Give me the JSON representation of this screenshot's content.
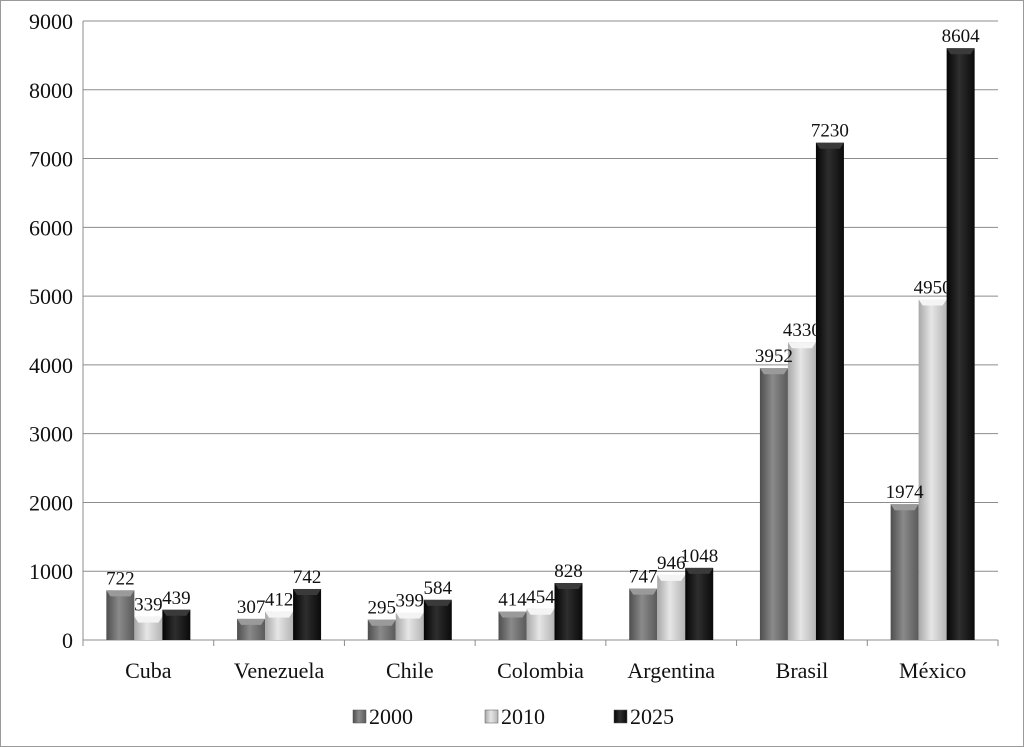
{
  "chart_data": {
    "type": "bar",
    "title": "",
    "xlabel": "",
    "ylabel": "",
    "ylim": [
      0,
      9000
    ],
    "yticks": [
      0,
      1000,
      2000,
      3000,
      4000,
      5000,
      6000,
      7000,
      8000,
      9000
    ],
    "grid": true,
    "legend_position": "bottom",
    "categories": [
      "Cuba",
      "Venezuela",
      "Chile",
      "Colombia",
      "Argentina",
      "Brasil",
      "México"
    ],
    "series": [
      {
        "name": "2000",
        "color": "#6b6b6b",
        "values": [
          722,
          307,
          295,
          414,
          747,
          3952,
          1974
        ]
      },
      {
        "name": "2010",
        "color": "#c4c4c4",
        "values": [
          339,
          412,
          399,
          454,
          946,
          4330,
          4950
        ]
      },
      {
        "name": "2025",
        "color": "#111111",
        "values": [
          439,
          742,
          584,
          828,
          1048,
          7230,
          8604
        ]
      }
    ]
  }
}
